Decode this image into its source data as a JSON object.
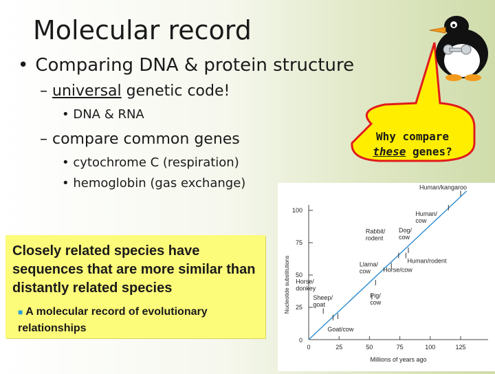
{
  "slide": {
    "title": "Molecular record",
    "bullet_main": "Comparing DNA & protein structure",
    "sub_dash1": "–",
    "sub_universal": "universal",
    "sub_rest1": "genetic code!",
    "sub_dna": "• DNA & RNA",
    "sub_compare": "– compare common genes",
    "sub_cyto": "• cytochrome C (respiration)",
    "sub_hemo": "• hemoglobin (gas exchange)",
    "callout_line1": "Why compare",
    "callout_these": "these",
    "callout_rest": "genes?",
    "yellow_main": "Closely related species have sequences that are more similar than distantly related species",
    "yellow_sub": "A molecular record of evolutionary relationships"
  },
  "chart_data": {
    "type": "scatter",
    "xlabel": "Millions of years ago",
    "ylabel": "Nucleotide substitutions",
    "xlim": [
      0,
      125
    ],
    "ylim": [
      0,
      100
    ],
    "xticks": [
      0,
      25,
      50,
      75,
      100,
      125
    ],
    "yticks": [
      0,
      25,
      50,
      75,
      100
    ],
    "trend_line": [
      [
        0,
        0
      ],
      [
        130,
        115
      ]
    ],
    "points": [
      {
        "label": "Goat/cow",
        "x": 20,
        "y": 15
      },
      {
        "label": "Sheep/ goat",
        "x": 24,
        "y": 16
      },
      {
        "label": "Horse/ donkey",
        "x": 12,
        "y": 20
      },
      {
        "label": "Llama/ cow",
        "x": 52,
        "y": 31
      },
      {
        "label": "Pig/ cow",
        "x": 55,
        "y": 42
      },
      {
        "label": "Horse/cow",
        "x": 68,
        "y": 55
      },
      {
        "label": "Rabbit/ rodent",
        "x": 74,
        "y": 63
      },
      {
        "label": "Human/rodent",
        "x": 80,
        "y": 63
      },
      {
        "label": "Dog/ cow",
        "x": 82,
        "y": 67
      },
      {
        "label": "Human/ cow",
        "x": 115,
        "y": 100
      },
      {
        "label": "Human/kangaroo",
        "x": 125,
        "y": 111
      }
    ]
  }
}
